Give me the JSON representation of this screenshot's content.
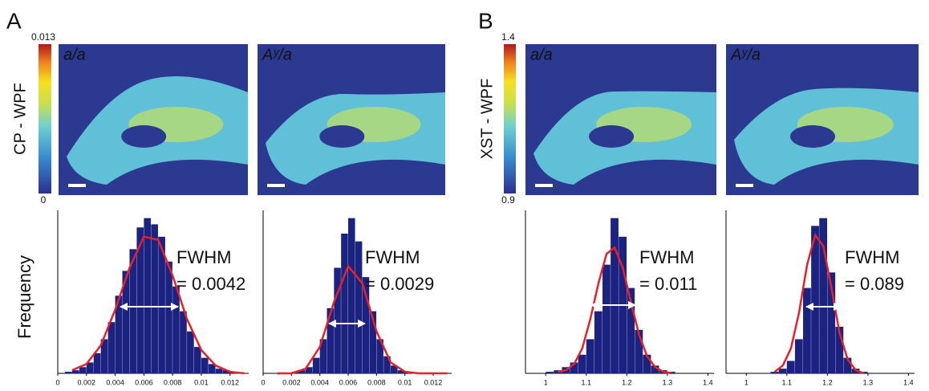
{
  "panels": [
    {
      "letter": "A",
      "colorbar": {
        "label": "CP - WPF",
        "min": 0,
        "max": 0.013
      },
      "images": [
        "a/a",
        "Aʸ/a"
      ],
      "y_label": "Frequency",
      "histograms": [
        {
          "type": "histogram",
          "color": "#1c2280",
          "fit_color": "#e8202a",
          "bins": [
            0.0005,
            0.001,
            0.0015,
            0.002,
            0.0025,
            0.003,
            0.0035,
            0.004,
            0.0045,
            0.005,
            0.0055,
            0.006,
            0.0065,
            0.007,
            0.0075,
            0.008,
            0.0085,
            0.009,
            0.0095,
            0.01,
            0.0105,
            0.011,
            0.0115,
            0.012,
            0.0125,
            0.013
          ],
          "values": [
            1,
            2,
            4,
            7,
            13,
            22,
            33,
            50,
            66,
            80,
            94,
            100,
            96,
            88,
            72,
            56,
            40,
            27,
            17,
            10,
            6,
            3,
            2,
            1,
            0
          ],
          "fit_x": [
            0.001,
            0.002,
            0.003,
            0.004,
            0.005,
            0.006,
            0.007,
            0.008,
            0.009,
            0.01,
            0.011,
            0.012,
            0.013
          ],
          "fit": [
            2,
            6,
            18,
            41,
            68,
            88,
            86,
            63,
            35,
            15,
            5,
            1,
            0
          ],
          "xlim": [
            0,
            0.0133
          ],
          "xticks": [
            0,
            0.002,
            0.004,
            0.006,
            0.008,
            0.01,
            0.012
          ],
          "ylim": [
            0,
            105
          ],
          "annotation": [
            "FWHM",
            "= 0.0042"
          ]
        },
        {
          "type": "histogram",
          "color": "#1c2280",
          "fit_color": "#e8202a",
          "bins": [
            0.0005,
            0.001,
            0.0015,
            0.002,
            0.0025,
            0.003,
            0.0035,
            0.004,
            0.0045,
            0.005,
            0.0055,
            0.006,
            0.0065,
            0.007,
            0.0075,
            0.008,
            0.0085,
            0.009,
            0.0095,
            0.01,
            0.0105,
            0.011,
            0.0115,
            0.012,
            0.0125,
            0.013
          ],
          "values": [
            0,
            0,
            0,
            1,
            2,
            4,
            10,
            22,
            42,
            68,
            90,
            100,
            85,
            62,
            40,
            22,
            11,
            5,
            2,
            1,
            0,
            0,
            0,
            0,
            0
          ],
          "fit_x": [
            0.001,
            0.002,
            0.003,
            0.004,
            0.005,
            0.006,
            0.007,
            0.008,
            0.009,
            0.01,
            0.011,
            0.012,
            0.013
          ],
          "fit": [
            0,
            0,
            3,
            17,
            46,
            69,
            58,
            27,
            7,
            1,
            0,
            0,
            0
          ],
          "xlim": [
            0,
            0.0133
          ],
          "xticks": [
            0,
            0.002,
            0.004,
            0.006,
            0.008,
            0.01,
            0.012
          ],
          "ylim": [
            0,
            105
          ],
          "annotation": [
            "FWHM",
            "= 0.0029"
          ]
        }
      ]
    },
    {
      "letter": "B",
      "colorbar": {
        "label": "XST - WPF",
        "min": 0.9,
        "max": 1.4
      },
      "images": [
        "a/a",
        "Aʸ/a"
      ],
      "histograms": [
        {
          "type": "histogram",
          "color": "#1c2280",
          "fit_color": "#e8202a",
          "bins": [
            1,
            1.02,
            1.04,
            1.06,
            1.08,
            1.1,
            1.12,
            1.14,
            1.16,
            1.18,
            1.2,
            1.22,
            1.24,
            1.26,
            1.28,
            1.3,
            1.32,
            1.34,
            1.36,
            1.38,
            1.4
          ],
          "values": [
            1,
            2,
            4,
            7,
            12,
            22,
            40,
            70,
            100,
            88,
            55,
            28,
            12,
            5,
            2,
            1,
            0,
            0,
            0,
            0
          ],
          "fit_x": [
            1.03,
            1.05,
            1.07,
            1.09,
            1.11,
            1.13,
            1.15,
            1.17,
            1.19,
            1.21,
            1.23,
            1.25,
            1.27,
            1.29,
            1.31
          ],
          "fit": [
            1,
            2,
            6,
            16,
            35,
            58,
            77,
            81,
            68,
            46,
            25,
            11,
            4,
            1,
            0
          ],
          "xlim": [
            0.95,
            1.415
          ],
          "xticks": [
            1,
            1.1,
            1.2,
            1.3,
            1.4
          ],
          "ylim": [
            0,
            105
          ],
          "annotation": [
            "FWHM",
            "= 0.011"
          ]
        },
        {
          "type": "histogram",
          "color": "#1c2280",
          "fit_color": "#e8202a",
          "bins": [
            1,
            1.02,
            1.04,
            1.06,
            1.08,
            1.1,
            1.12,
            1.14,
            1.16,
            1.18,
            1.2,
            1.22,
            1.24,
            1.26,
            1.28,
            1.3,
            1.32,
            1.34,
            1.36,
            1.38,
            1.4
          ],
          "values": [
            0,
            0,
            0,
            1,
            3,
            8,
            22,
            55,
            95,
            100,
            65,
            30,
            10,
            3,
            1,
            0,
            0,
            0,
            0,
            0
          ],
          "fit_x": [
            1.07,
            1.09,
            1.11,
            1.13,
            1.15,
            1.17,
            1.19,
            1.21,
            1.23,
            1.25,
            1.27,
            1.29
          ],
          "fit": [
            1,
            5,
            16,
            39,
            70,
            89,
            82,
            55,
            26,
            9,
            2,
            0
          ],
          "xlim": [
            0.95,
            1.415
          ],
          "xticks": [
            1,
            1.1,
            1.2,
            1.3,
            1.4
          ],
          "ylim": [
            0,
            105
          ],
          "annotation": [
            "FWHM",
            "= 0.089"
          ]
        }
      ]
    }
  ]
}
